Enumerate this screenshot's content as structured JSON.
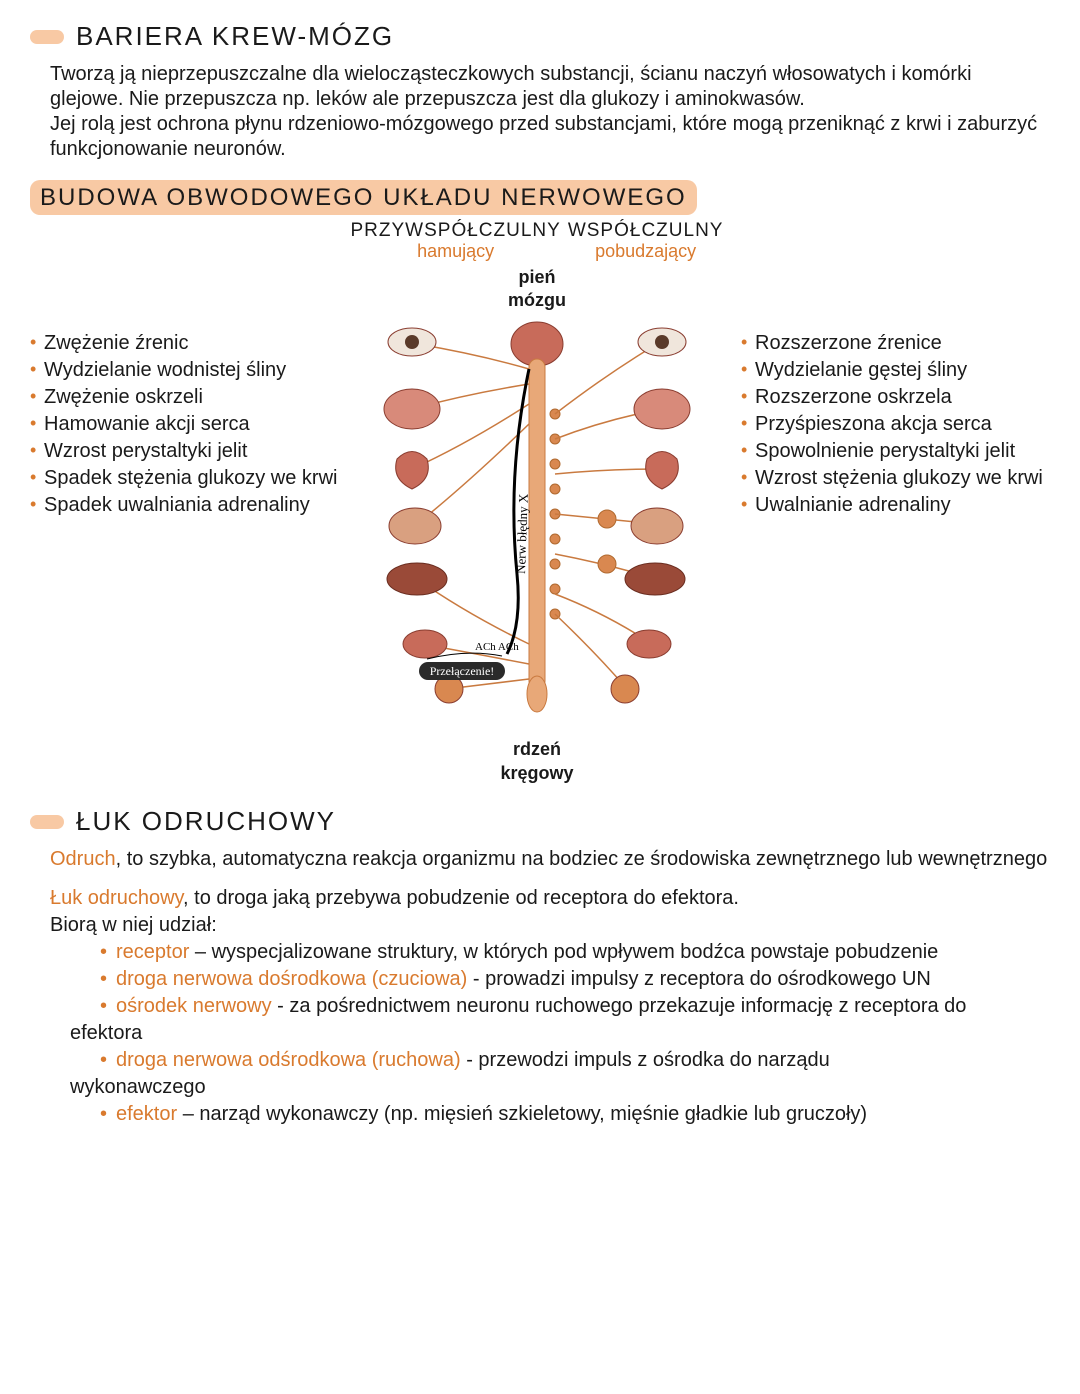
{
  "colors": {
    "accent_bg": "#f8c9a4",
    "accent_text": "#d97a2e",
    "body_text": "#1a1a1a",
    "bg": "#ffffff",
    "organ_fill": "#c86b5a",
    "organ_stroke": "#8a3d30",
    "cord_fill": "#e8a878",
    "ganglion_fill": "#d98850",
    "nerve_stroke": "#c97a40"
  },
  "section1": {
    "title": "BARIERA KREW-MÓZG",
    "paragraph": "Tworzą ją nieprzepuszczalne dla wielocząsteczkowych substancji, ścianu naczyń włosowatych i komórki glejowe. Nie przepuszcza np. leków ale przepuszcza jest dla glukozy i aminokwasów.\nJej rolą jest ochrona płynu rdzeniowo-mózgowego przed substancjami, które mogą przeniknąć z krwi i zaburzyć funkcjonowanie neuronów."
  },
  "section2": {
    "title": "BUDOWA OBWODOWEGO UKŁADU NERWOWEGO",
    "left_header": {
      "main": "PRZYWSPÓŁCZULNY",
      "sub": "hamujący"
    },
    "right_header": {
      "main": "WSPÓŁCZULNY",
      "sub": "pobudzający"
    },
    "center_top": "pień\nmózgu",
    "center_bottom": "rdzeń\nkręgowy",
    "nerve_label": "Nerw błędny X",
    "switch_label": "Przełączenie!",
    "ach_label": "ACh ACh",
    "left_list": [
      "Zwężenie źrenic",
      "Wydzielanie wodnistej śliny",
      "Zwężenie oskrzeli",
      "Hamowanie akcji serca",
      "Wzrost perystaltyki jelit",
      "Spadek stężenia glukozy we krwi",
      "Spadek uwalniania adrenaliny"
    ],
    "right_list": [
      "Rozszerzone źrenice",
      "Wydzielanie gęstej śliny",
      "Rozszerzone oskrzela",
      "Przyśpieszona akcja serca",
      "Spowolnienie perystaltyki jelit",
      "Wzrost stężenia glukozy we krwi",
      "Uwalnianie adrenaliny"
    ]
  },
  "section3": {
    "title": "ŁUK ODRUCHOWY",
    "def1_term": "Odruch",
    "def1_body": ", to szybka, automatyczna reakcja organizmu na bodziec ze środowiska zewnętrznego lub wewnętrznego",
    "def2_term": "Łuk odruchowy",
    "def2_body": ", to droga jaką przebywa pobudzenie od receptora do efektora.",
    "def2_lead": "Biorą w niej udział:",
    "items": [
      {
        "term": "receptor",
        "body": " – wyspecjalizowane struktury, w których pod wpływem bodźca powstaje pobudzenie"
      },
      {
        "term": "droga nerwowa dośrodkowa",
        "paren": " (czuciowa)",
        "body": " - prowadzi impulsy z receptora do ośrodkowego UN"
      },
      {
        "term": "ośrodek nerwowy",
        "body": " - za pośrednictwem neuronu ruchowego przekazuje informację z receptora do"
      }
    ],
    "item3_cont": "efektora",
    "items2": [
      {
        "term": "droga nerwowa odśrodkowa",
        "paren": " (ruchowa)",
        "body": " - przewodzi impuls z ośrodka do narządu"
      }
    ],
    "item4_cont": "wykonawczego",
    "items3": [
      {
        "term": "efektor",
        "body": " – narząd wykonawczy (np. mięsień szkieletowy, mięśnie gładkie lub gruczoły)"
      }
    ]
  }
}
